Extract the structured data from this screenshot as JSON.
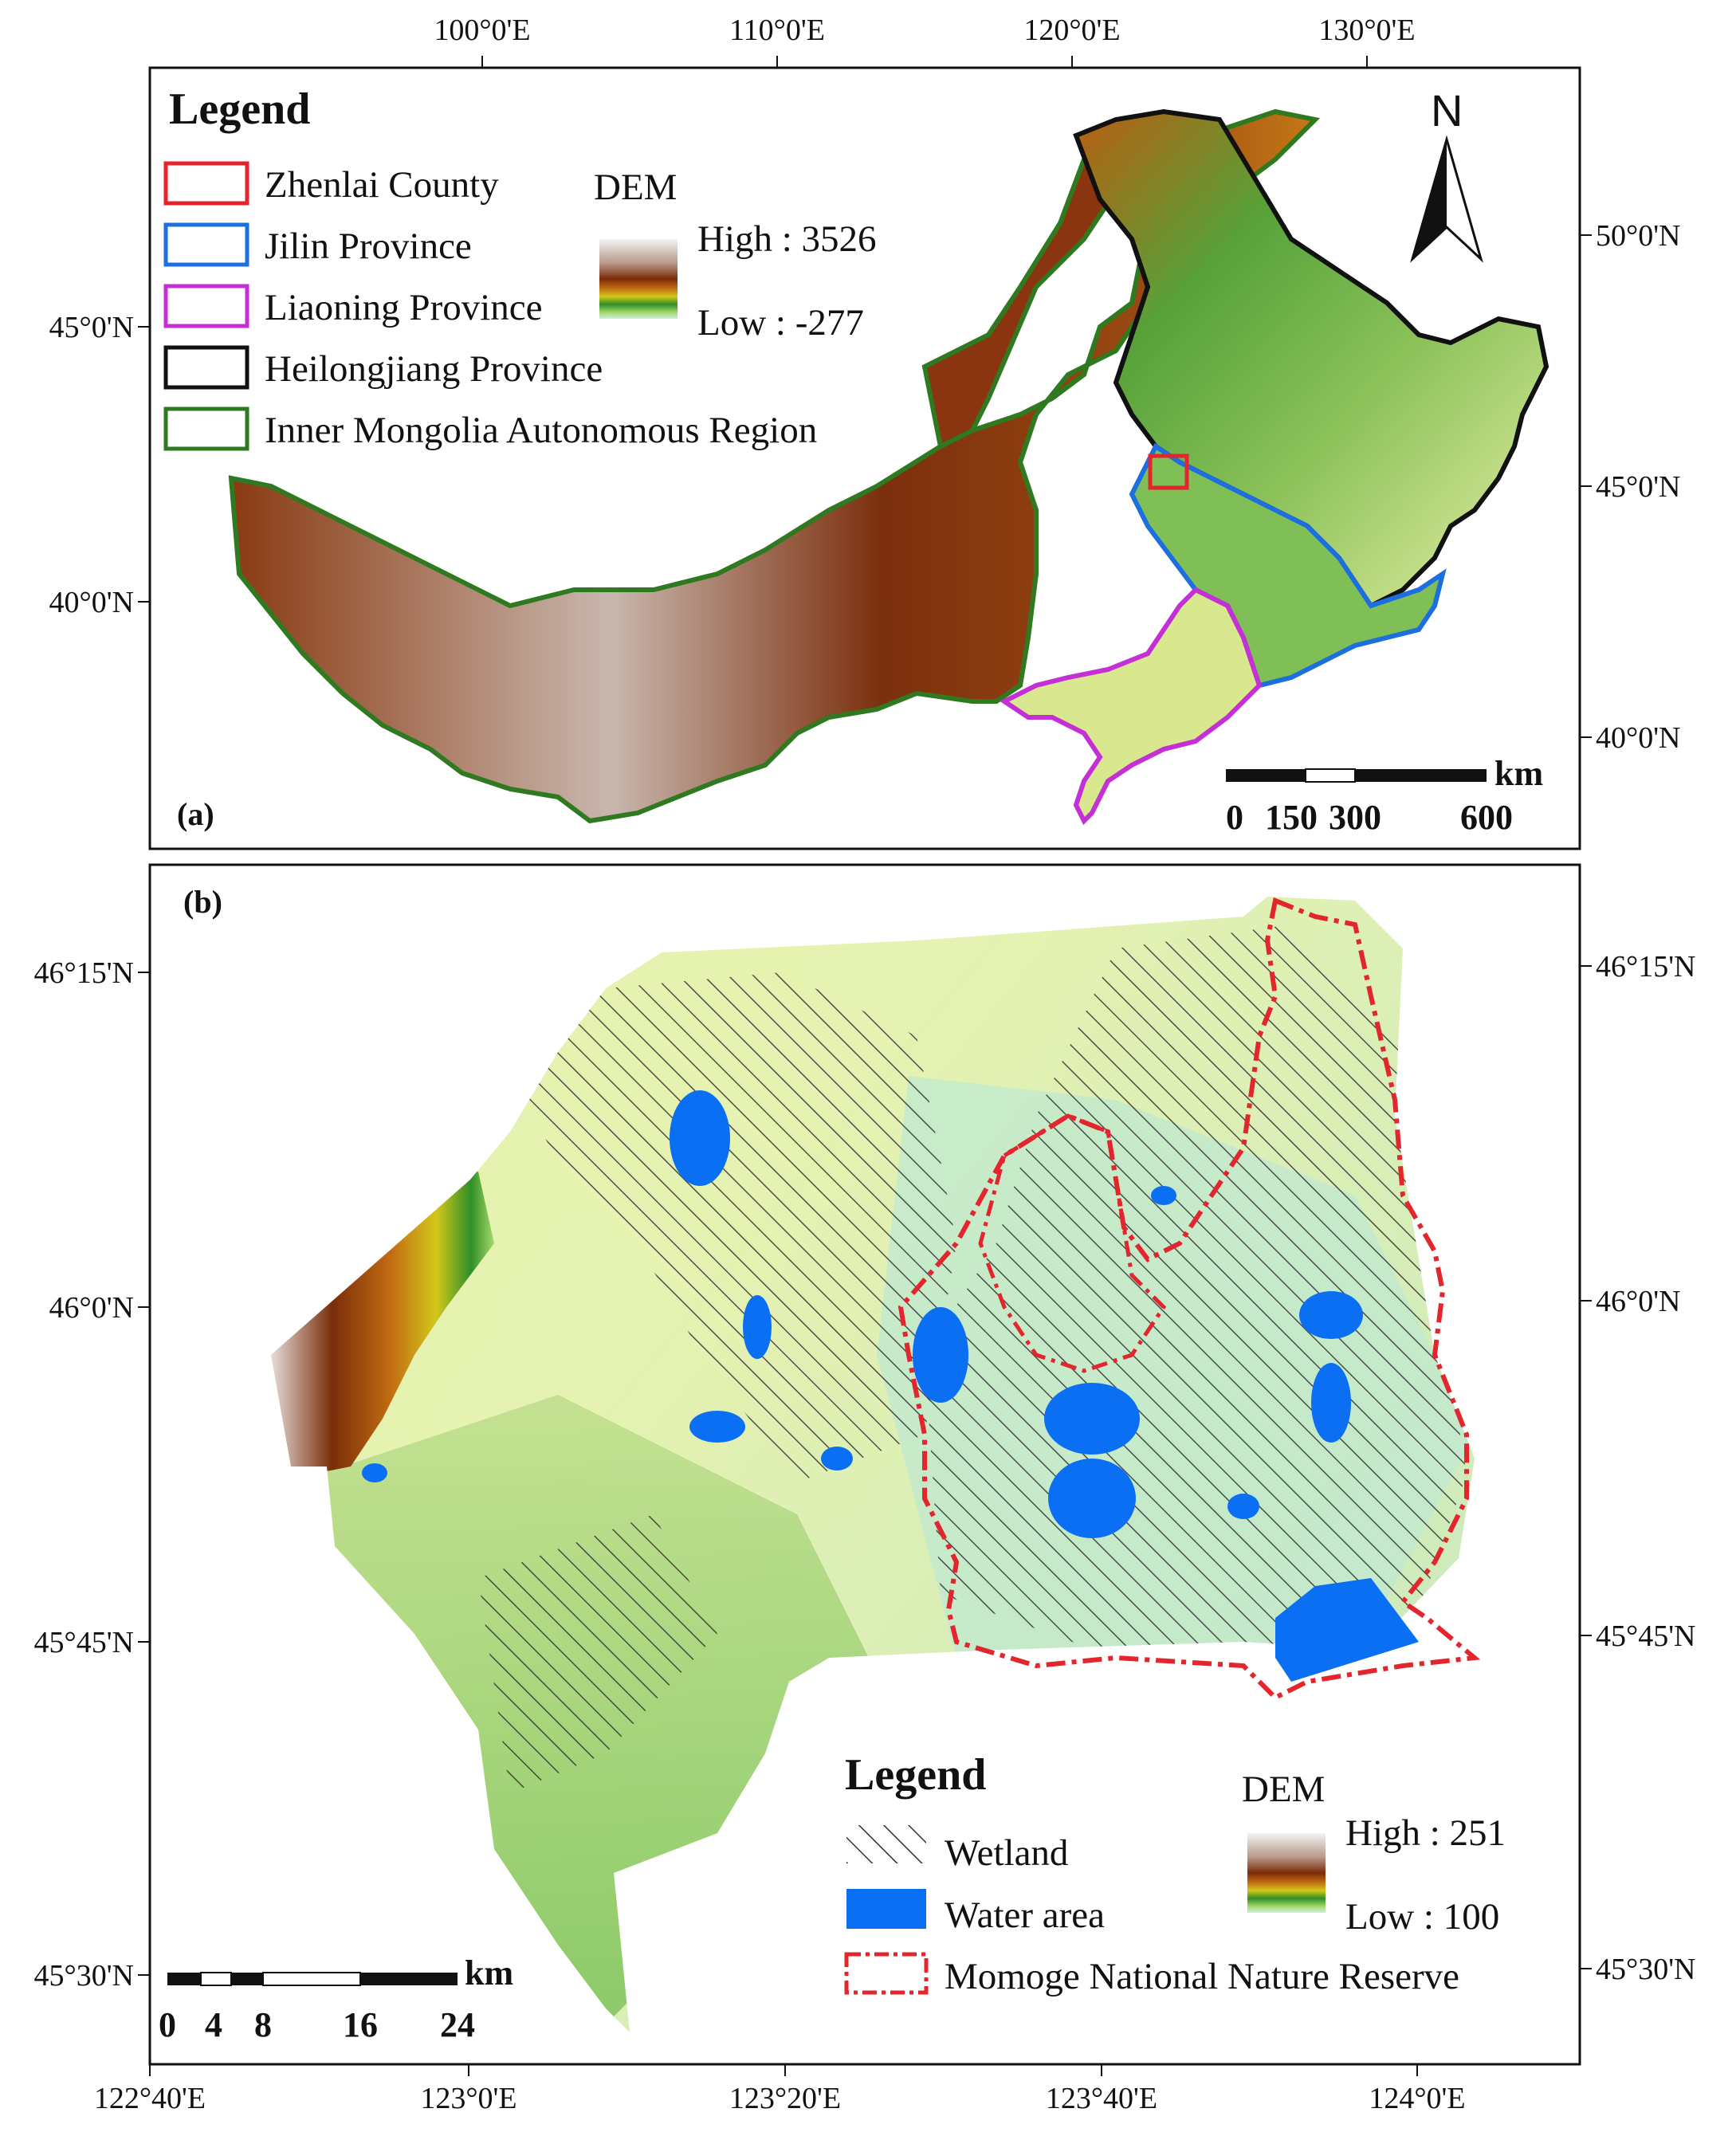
{
  "panel_a": {
    "label": "(a)",
    "top_ticks": [
      "100°0'E",
      "110°0'E",
      "120°0'E",
      "130°0'E"
    ],
    "left_ticks": [
      "45°0'N",
      "40°0'N"
    ],
    "right_ticks": [
      "50°0'N",
      "45°0'N",
      "40°0'N"
    ],
    "legend": {
      "title": "Legend",
      "items": [
        {
          "label": "Zhenlai County",
          "color": "#e3262d"
        },
        {
          "label": "Jilin Province",
          "color": "#1d6fe0"
        },
        {
          "label": "Liaoning Province",
          "color": "#c42fd6"
        },
        {
          "label": "Heilongjiang Province",
          "color": "#111111"
        },
        {
          "label": "Inner Mongolia Autonomous Region",
          "color": "#2f7a21"
        }
      ],
      "dem_title": "DEM",
      "dem_high": "High : 3526",
      "dem_low": "Low : -277"
    },
    "north": "N",
    "scale": {
      "unit": "km",
      "labels": [
        "0",
        "150",
        "300",
        "600"
      ]
    }
  },
  "panel_b": {
    "label": "(b)",
    "bottom_ticks": [
      "122°40'E",
      "123°0'E",
      "123°20'E",
      "123°40'E",
      "124°0'E"
    ],
    "left_ticks": [
      "46°15'N",
      "46°0'N",
      "45°45'N",
      "45°30'N"
    ],
    "right_ticks": [
      "46°15'N",
      "46°0'N",
      "45°45'N",
      "45°30'N"
    ],
    "legend": {
      "title": "Legend",
      "items": [
        {
          "label": "Wetland",
          "symbol": "hatch"
        },
        {
          "label": "Water area",
          "symbol": "fill",
          "color": "#0a6ff2"
        },
        {
          "label": "Momoge National Nature Reserve",
          "symbol": "dash-dot",
          "color": "#e3262d"
        }
      ],
      "dem_title": "DEM",
      "dem_high": "High : 251",
      "dem_low": "Low : 100"
    },
    "scale": {
      "unit": "km",
      "labels": [
        "0",
        "4",
        "8",
        "16",
        "24"
      ]
    }
  },
  "colors": {
    "dem_ramp": [
      "#f3f3f3",
      "#c4b3a8",
      "#7a2d0a",
      "#c26b12",
      "#d2c81a",
      "#2f8f27",
      "#9fd26a",
      "#e8f3b8",
      "#bfeee0"
    ],
    "water": "#0a6ff2",
    "reserve": "#e3262d"
  }
}
